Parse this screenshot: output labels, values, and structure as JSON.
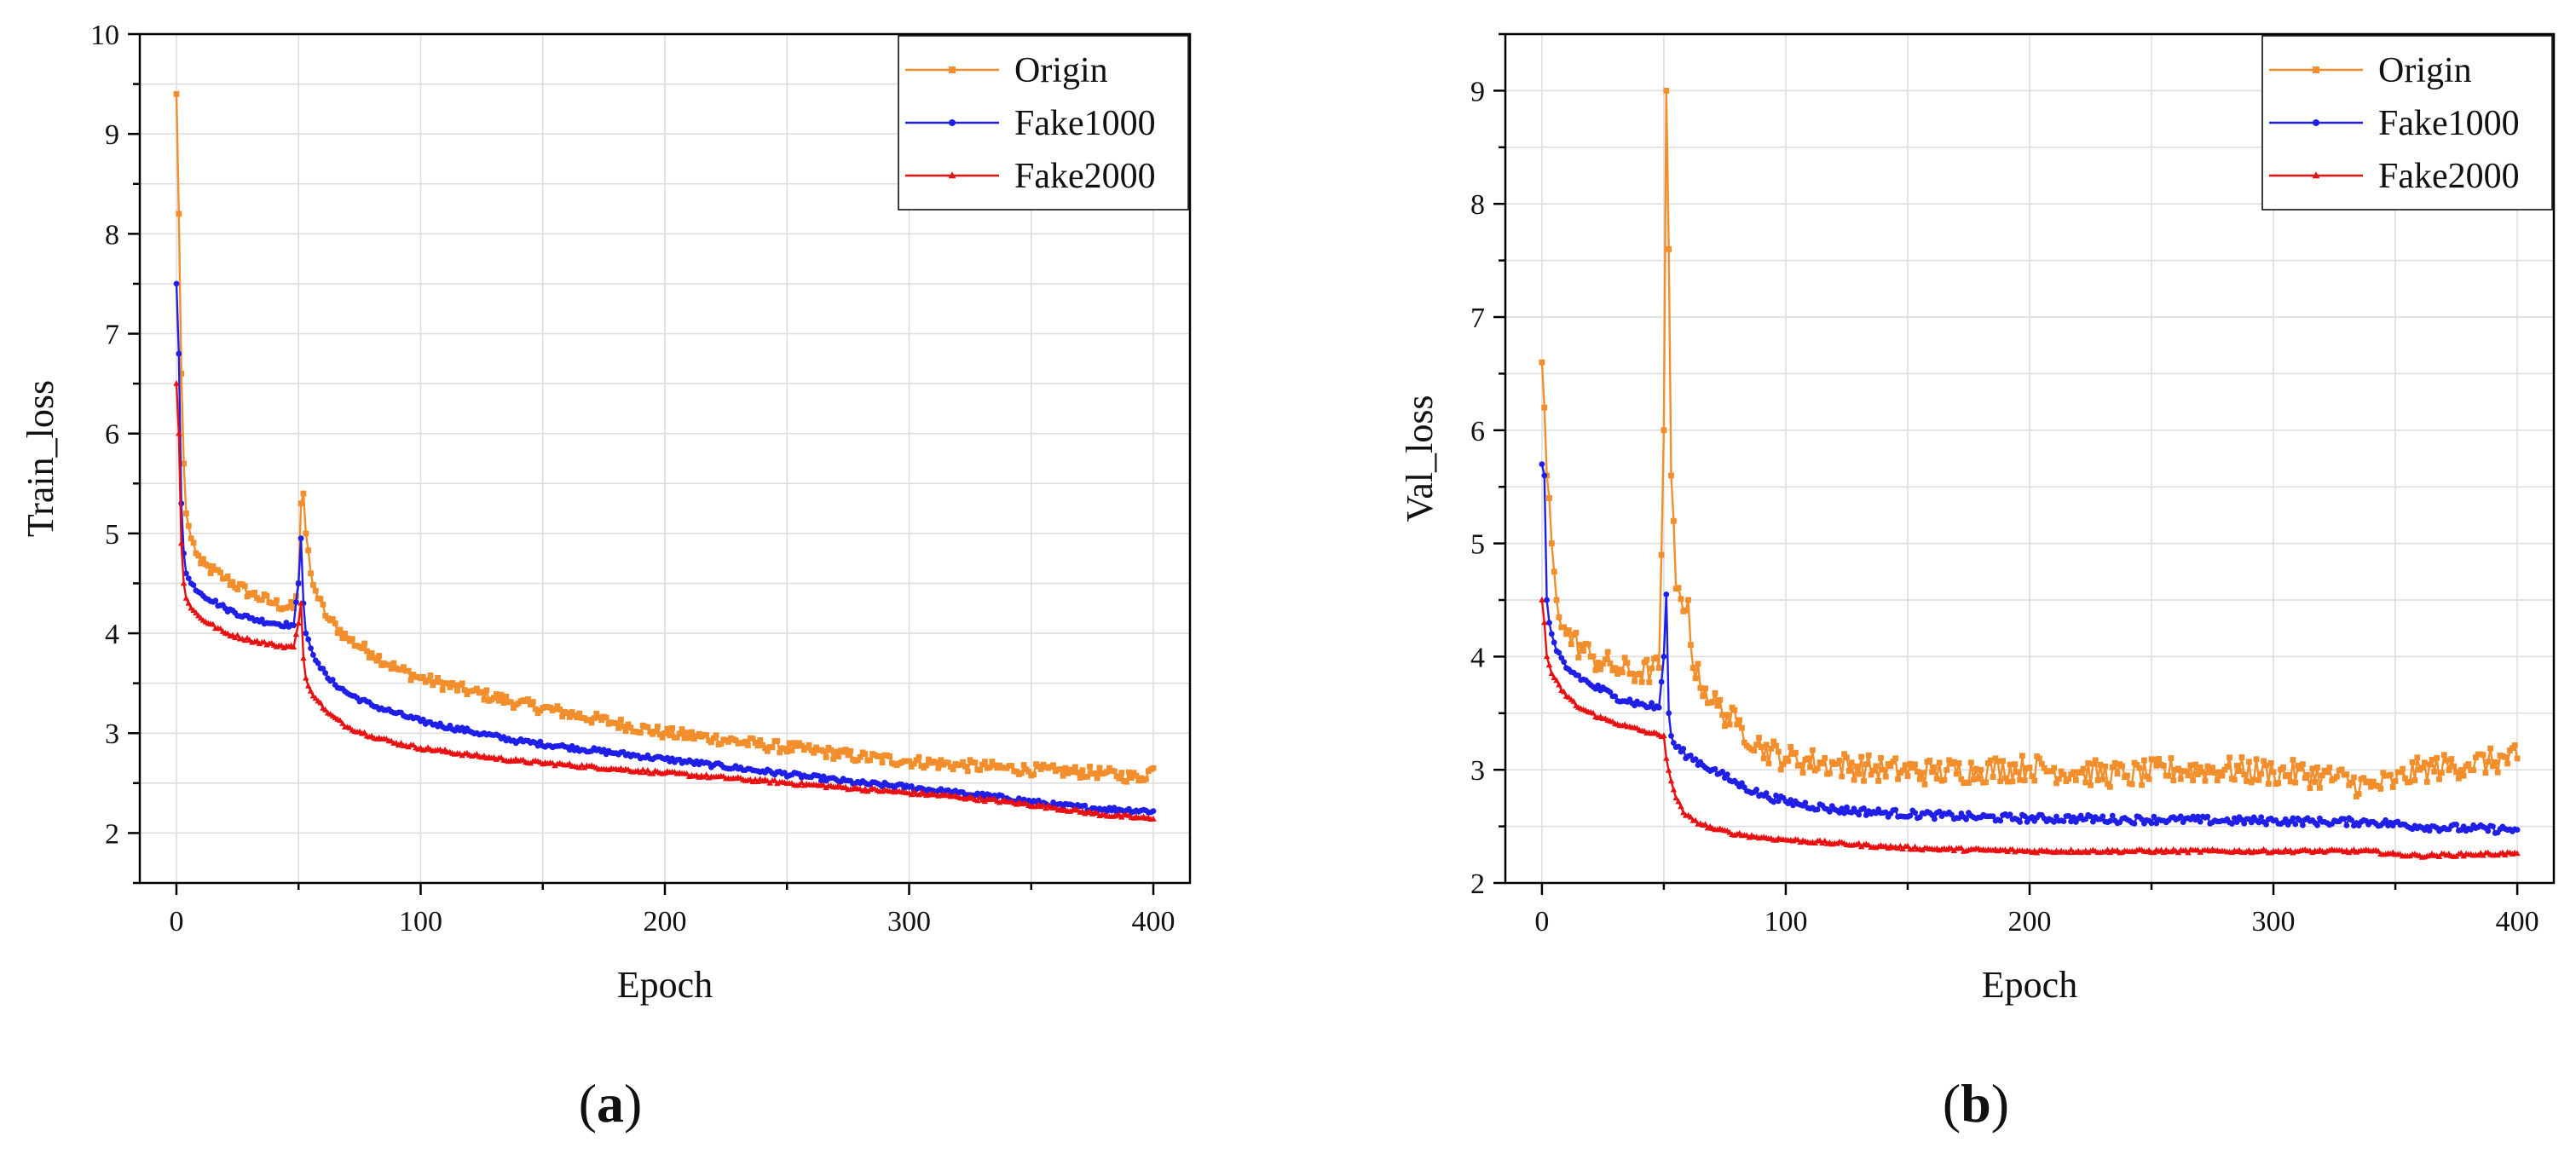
{
  "figure": {
    "panels": [
      {
        "label_letter": "a",
        "label_open": "(",
        "label_close": ")"
      },
      {
        "label_letter": "b",
        "label_open": "(",
        "label_close": ")"
      }
    ]
  },
  "colors": {
    "Origin": "#f28e2b",
    "Fake1000": "#1f1fe8",
    "Fake2000": "#e81010",
    "grid": "#dcdcdc",
    "axis": "#000000"
  },
  "chart_data": [
    {
      "type": "line",
      "title": "",
      "xlabel": "Epoch",
      "ylabel": "Train_loss",
      "xlim": [
        -15,
        415
      ],
      "ylim": [
        1.5,
        10
      ],
      "xticks": [
        0,
        100,
        200,
        300,
        400
      ],
      "yticks": [
        2,
        3,
        4,
        5,
        6,
        7,
        8,
        9,
        10
      ],
      "grid": true,
      "legend_position": "top-right",
      "series": [
        {
          "name": "Origin",
          "marker": "square",
          "keypoints": [
            [
              0,
              9.4
            ],
            [
              1,
              8.2
            ],
            [
              2,
              6.6
            ],
            [
              3,
              5.7
            ],
            [
              4,
              5.2
            ],
            [
              6,
              4.95
            ],
            [
              10,
              4.7
            ],
            [
              20,
              4.55
            ],
            [
              30,
              4.4
            ],
            [
              40,
              4.3
            ],
            [
              48,
              4.25
            ],
            [
              50,
              4.5
            ],
            [
              51,
              5.3
            ],
            [
              52,
              5.4
            ],
            [
              53,
              5.0
            ],
            [
              55,
              4.6
            ],
            [
              58,
              4.35
            ],
            [
              62,
              4.15
            ],
            [
              70,
              3.95
            ],
            [
              80,
              3.8
            ],
            [
              90,
              3.65
            ],
            [
              100,
              3.55
            ],
            [
              120,
              3.42
            ],
            [
              140,
              3.3
            ],
            [
              160,
              3.2
            ],
            [
              180,
              3.1
            ],
            [
              200,
              3.0
            ],
            [
              220,
              2.95
            ],
            [
              240,
              2.88
            ],
            [
              260,
              2.83
            ],
            [
              280,
              2.76
            ],
            [
              300,
              2.72
            ],
            [
              320,
              2.68
            ],
            [
              340,
              2.65
            ],
            [
              360,
              2.62
            ],
            [
              380,
              2.6
            ],
            [
              395,
              2.55
            ],
            [
              400,
              2.65
            ]
          ],
          "noise": 0.06
        },
        {
          "name": "Fake1000",
          "marker": "circle",
          "keypoints": [
            [
              0,
              7.5
            ],
            [
              1,
              6.8
            ],
            [
              2,
              5.3
            ],
            [
              3,
              4.8
            ],
            [
              4,
              4.6
            ],
            [
              6,
              4.5
            ],
            [
              10,
              4.4
            ],
            [
              20,
              4.25
            ],
            [
              30,
              4.15
            ],
            [
              40,
              4.1
            ],
            [
              48,
              4.08
            ],
            [
              50,
              4.5
            ],
            [
              51,
              4.95
            ],
            [
              52,
              4.3
            ],
            [
              53,
              4.0
            ],
            [
              55,
              3.85
            ],
            [
              58,
              3.7
            ],
            [
              62,
              3.55
            ],
            [
              70,
              3.4
            ],
            [
              80,
              3.28
            ],
            [
              90,
              3.2
            ],
            [
              100,
              3.12
            ],
            [
              120,
              3.02
            ],
            [
              140,
              2.92
            ],
            [
              160,
              2.86
            ],
            [
              180,
              2.8
            ],
            [
              200,
              2.74
            ],
            [
              220,
              2.68
            ],
            [
              240,
              2.62
            ],
            [
              260,
              2.56
            ],
            [
              280,
              2.5
            ],
            [
              300,
              2.46
            ],
            [
              320,
              2.4
            ],
            [
              340,
              2.35
            ],
            [
              360,
              2.28
            ],
            [
              380,
              2.24
            ],
            [
              400,
              2.22
            ]
          ],
          "noise": 0.025
        },
        {
          "name": "Fake2000",
          "marker": "triangle",
          "keypoints": [
            [
              0,
              6.5
            ],
            [
              1,
              6.0
            ],
            [
              2,
              4.9
            ],
            [
              3,
              4.5
            ],
            [
              4,
              4.35
            ],
            [
              6,
              4.25
            ],
            [
              10,
              4.15
            ],
            [
              20,
              4.0
            ],
            [
              30,
              3.93
            ],
            [
              40,
              3.88
            ],
            [
              48,
              3.86
            ],
            [
              50,
              4.1
            ],
            [
              51,
              4.3
            ],
            [
              52,
              3.75
            ],
            [
              53,
              3.55
            ],
            [
              55,
              3.42
            ],
            [
              58,
              3.32
            ],
            [
              62,
              3.2
            ],
            [
              70,
              3.06
            ],
            [
              80,
              2.97
            ],
            [
              90,
              2.9
            ],
            [
              100,
              2.85
            ],
            [
              120,
              2.78
            ],
            [
              140,
              2.72
            ],
            [
              160,
              2.68
            ],
            [
              180,
              2.64
            ],
            [
              200,
              2.6
            ],
            [
              220,
              2.56
            ],
            [
              240,
              2.52
            ],
            [
              260,
              2.48
            ],
            [
              280,
              2.44
            ],
            [
              300,
              2.4
            ],
            [
              320,
              2.36
            ],
            [
              340,
              2.31
            ],
            [
              360,
              2.25
            ],
            [
              380,
              2.18
            ],
            [
              400,
              2.14
            ]
          ],
          "noise": 0.018
        }
      ]
    },
    {
      "type": "line",
      "title": "",
      "xlabel": "Epoch",
      "ylabel": "Val_loss",
      "xlim": [
        -15,
        415
      ],
      "ylim": [
        2,
        9.5
      ],
      "xticks": [
        0,
        100,
        200,
        300,
        400
      ],
      "yticks": [
        2,
        3,
        4,
        5,
        6,
        7,
        8,
        9
      ],
      "grid": true,
      "legend_position": "top-right",
      "series": [
        {
          "name": "Origin",
          "marker": "square",
          "keypoints": [
            [
              0,
              6.6
            ],
            [
              1,
              6.2
            ],
            [
              2,
              5.6
            ],
            [
              3,
              5.4
            ],
            [
              4,
              5.0
            ],
            [
              6,
              4.5
            ],
            [
              10,
              4.2
            ],
            [
              20,
              4.0
            ],
            [
              30,
              3.9
            ],
            [
              40,
              3.85
            ],
            [
              48,
              3.9
            ],
            [
              50,
              6.0
            ],
            [
              51,
              9.0
            ],
            [
              52,
              7.6
            ],
            [
              53,
              5.6
            ],
            [
              55,
              4.6
            ],
            [
              58,
              4.4
            ],
            [
              60,
              4.5
            ],
            [
              62,
              3.9
            ],
            [
              70,
              3.6
            ],
            [
              80,
              3.4
            ],
            [
              90,
              3.2
            ],
            [
              100,
              3.1
            ],
            [
              120,
              3.05
            ],
            [
              140,
              3.0
            ],
            [
              160,
              2.98
            ],
            [
              180,
              3.0
            ],
            [
              200,
              3.02
            ],
            [
              220,
              2.98
            ],
            [
              240,
              2.95
            ],
            [
              260,
              3.0
            ],
            [
              280,
              3.0
            ],
            [
              300,
              2.98
            ],
            [
              320,
              2.95
            ],
            [
              340,
              2.85
            ],
            [
              350,
              2.9
            ],
            [
              360,
              3.0
            ],
            [
              380,
              3.05
            ],
            [
              400,
              3.1
            ]
          ],
          "noise": 0.12
        },
        {
          "name": "Fake1000",
          "marker": "circle",
          "keypoints": [
            [
              0,
              5.7
            ],
            [
              1,
              5.6
            ],
            [
              2,
              4.5
            ],
            [
              3,
              4.3
            ],
            [
              4,
              4.2
            ],
            [
              6,
              4.05
            ],
            [
              10,
              3.9
            ],
            [
              20,
              3.75
            ],
            [
              30,
              3.65
            ],
            [
              40,
              3.58
            ],
            [
              48,
              3.55
            ],
            [
              50,
              4.0
            ],
            [
              51,
              4.55
            ],
            [
              52,
              3.5
            ],
            [
              53,
              3.3
            ],
            [
              55,
              3.2
            ],
            [
              60,
              3.12
            ],
            [
              70,
              3.0
            ],
            [
              80,
              2.88
            ],
            [
              90,
              2.78
            ],
            [
              100,
              2.72
            ],
            [
              120,
              2.65
            ],
            [
              140,
              2.62
            ],
            [
              160,
              2.6
            ],
            [
              180,
              2.58
            ],
            [
              200,
              2.57
            ],
            [
              220,
              2.57
            ],
            [
              240,
              2.56
            ],
            [
              260,
              2.56
            ],
            [
              280,
              2.55
            ],
            [
              300,
              2.55
            ],
            [
              320,
              2.54
            ],
            [
              340,
              2.54
            ],
            [
              360,
              2.5
            ],
            [
              380,
              2.48
            ],
            [
              400,
              2.47
            ]
          ],
          "noise": 0.035
        },
        {
          "name": "Fake2000",
          "marker": "triangle",
          "keypoints": [
            [
              0,
              4.5
            ],
            [
              1,
              4.3
            ],
            [
              2,
              4.0
            ],
            [
              4,
              3.85
            ],
            [
              8,
              3.7
            ],
            [
              15,
              3.55
            ],
            [
              25,
              3.45
            ],
            [
              35,
              3.38
            ],
            [
              45,
              3.32
            ],
            [
              50,
              3.3
            ],
            [
              51,
              3.1
            ],
            [
              53,
              2.9
            ],
            [
              55,
              2.75
            ],
            [
              58,
              2.62
            ],
            [
              62,
              2.55
            ],
            [
              70,
              2.48
            ],
            [
              80,
              2.43
            ],
            [
              90,
              2.4
            ],
            [
              100,
              2.38
            ],
            [
              120,
              2.35
            ],
            [
              140,
              2.32
            ],
            [
              160,
              2.3
            ],
            [
              180,
              2.29
            ],
            [
              200,
              2.28
            ],
            [
              220,
              2.28
            ],
            [
              240,
              2.28
            ],
            [
              260,
              2.28
            ],
            [
              280,
              2.28
            ],
            [
              300,
              2.28
            ],
            [
              320,
              2.28
            ],
            [
              340,
              2.28
            ],
            [
              350,
              2.25
            ],
            [
              360,
              2.24
            ],
            [
              380,
              2.25
            ],
            [
              400,
              2.26
            ]
          ],
          "noise": 0.015
        }
      ]
    }
  ]
}
